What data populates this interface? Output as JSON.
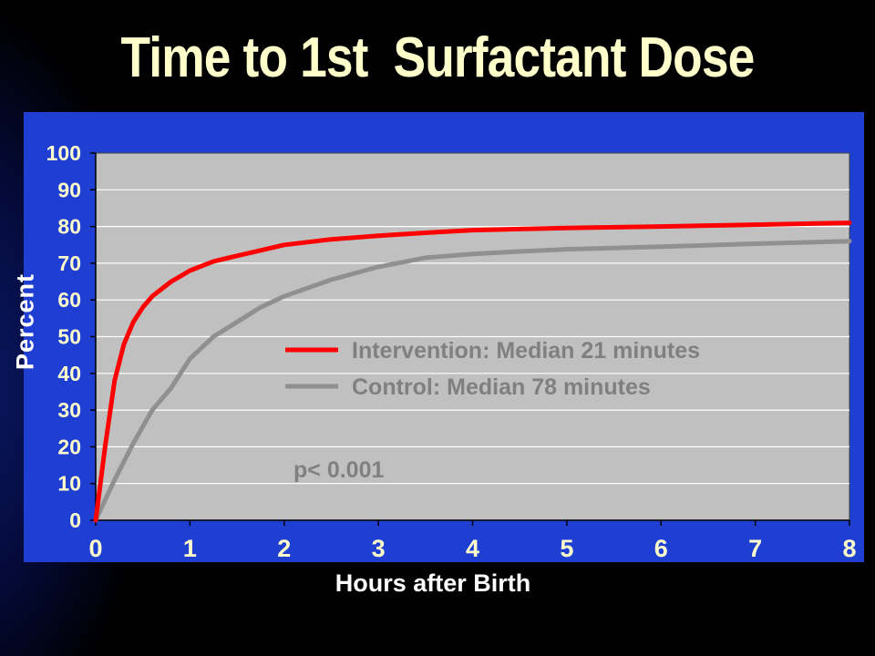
{
  "slide": {
    "title": "Time to 1st  Surfactant Dose",
    "colors": {
      "title": "#ffffcc",
      "panel": "#1f3fd3",
      "plot_area": "#c0c0c0",
      "tick_labels": "#ffffcc",
      "annotation_text": "#808080"
    }
  },
  "chart_data": {
    "type": "line",
    "title": "Time to 1st  Surfactant Dose",
    "xlabel": "Hours after Birth",
    "ylabel": "Percent",
    "xlim": [
      0,
      8
    ],
    "ylim": [
      0,
      100
    ],
    "x_ticks": [
      "0",
      "1",
      "2",
      "3",
      "4",
      "5",
      "6",
      "7",
      "8"
    ],
    "y_ticks": [
      "0",
      "10",
      "20",
      "30",
      "40",
      "50",
      "60",
      "70",
      "80",
      "90",
      "100"
    ],
    "grid": "horizontal",
    "legend_position": "center",
    "annotation": "p< 0.001",
    "series": [
      {
        "name": "Intervention: Median 21 minutes",
        "color": "#ff0000",
        "x": [
          0,
          0.1,
          0.2,
          0.3,
          0.4,
          0.5,
          0.6,
          0.8,
          1.0,
          1.25,
          1.5,
          1.75,
          2.0,
          2.5,
          3.0,
          3.5,
          4.0,
          4.5,
          5.0,
          6.0,
          7.0,
          8.0
        ],
        "values": [
          0,
          20,
          38,
          48,
          54,
          58,
          61,
          65,
          68,
          70.5,
          72,
          73.5,
          75,
          76.5,
          77.5,
          78.3,
          79,
          79.3,
          79.6,
          80,
          80.5,
          81
        ]
      },
      {
        "name": "Control: Median 78 minutes",
        "color": "#909090",
        "x": [
          0,
          0.2,
          0.4,
          0.6,
          0.8,
          1.0,
          1.25,
          1.5,
          1.75,
          2.0,
          2.5,
          3.0,
          3.5,
          4.0,
          4.5,
          5.0,
          6.0,
          7.0,
          8.0
        ],
        "values": [
          0,
          11,
          21,
          30,
          36,
          44,
          50,
          54,
          58,
          61,
          65.5,
          69,
          71.5,
          72.5,
          73.2,
          73.8,
          74.5,
          75.3,
          76
        ]
      }
    ]
  }
}
